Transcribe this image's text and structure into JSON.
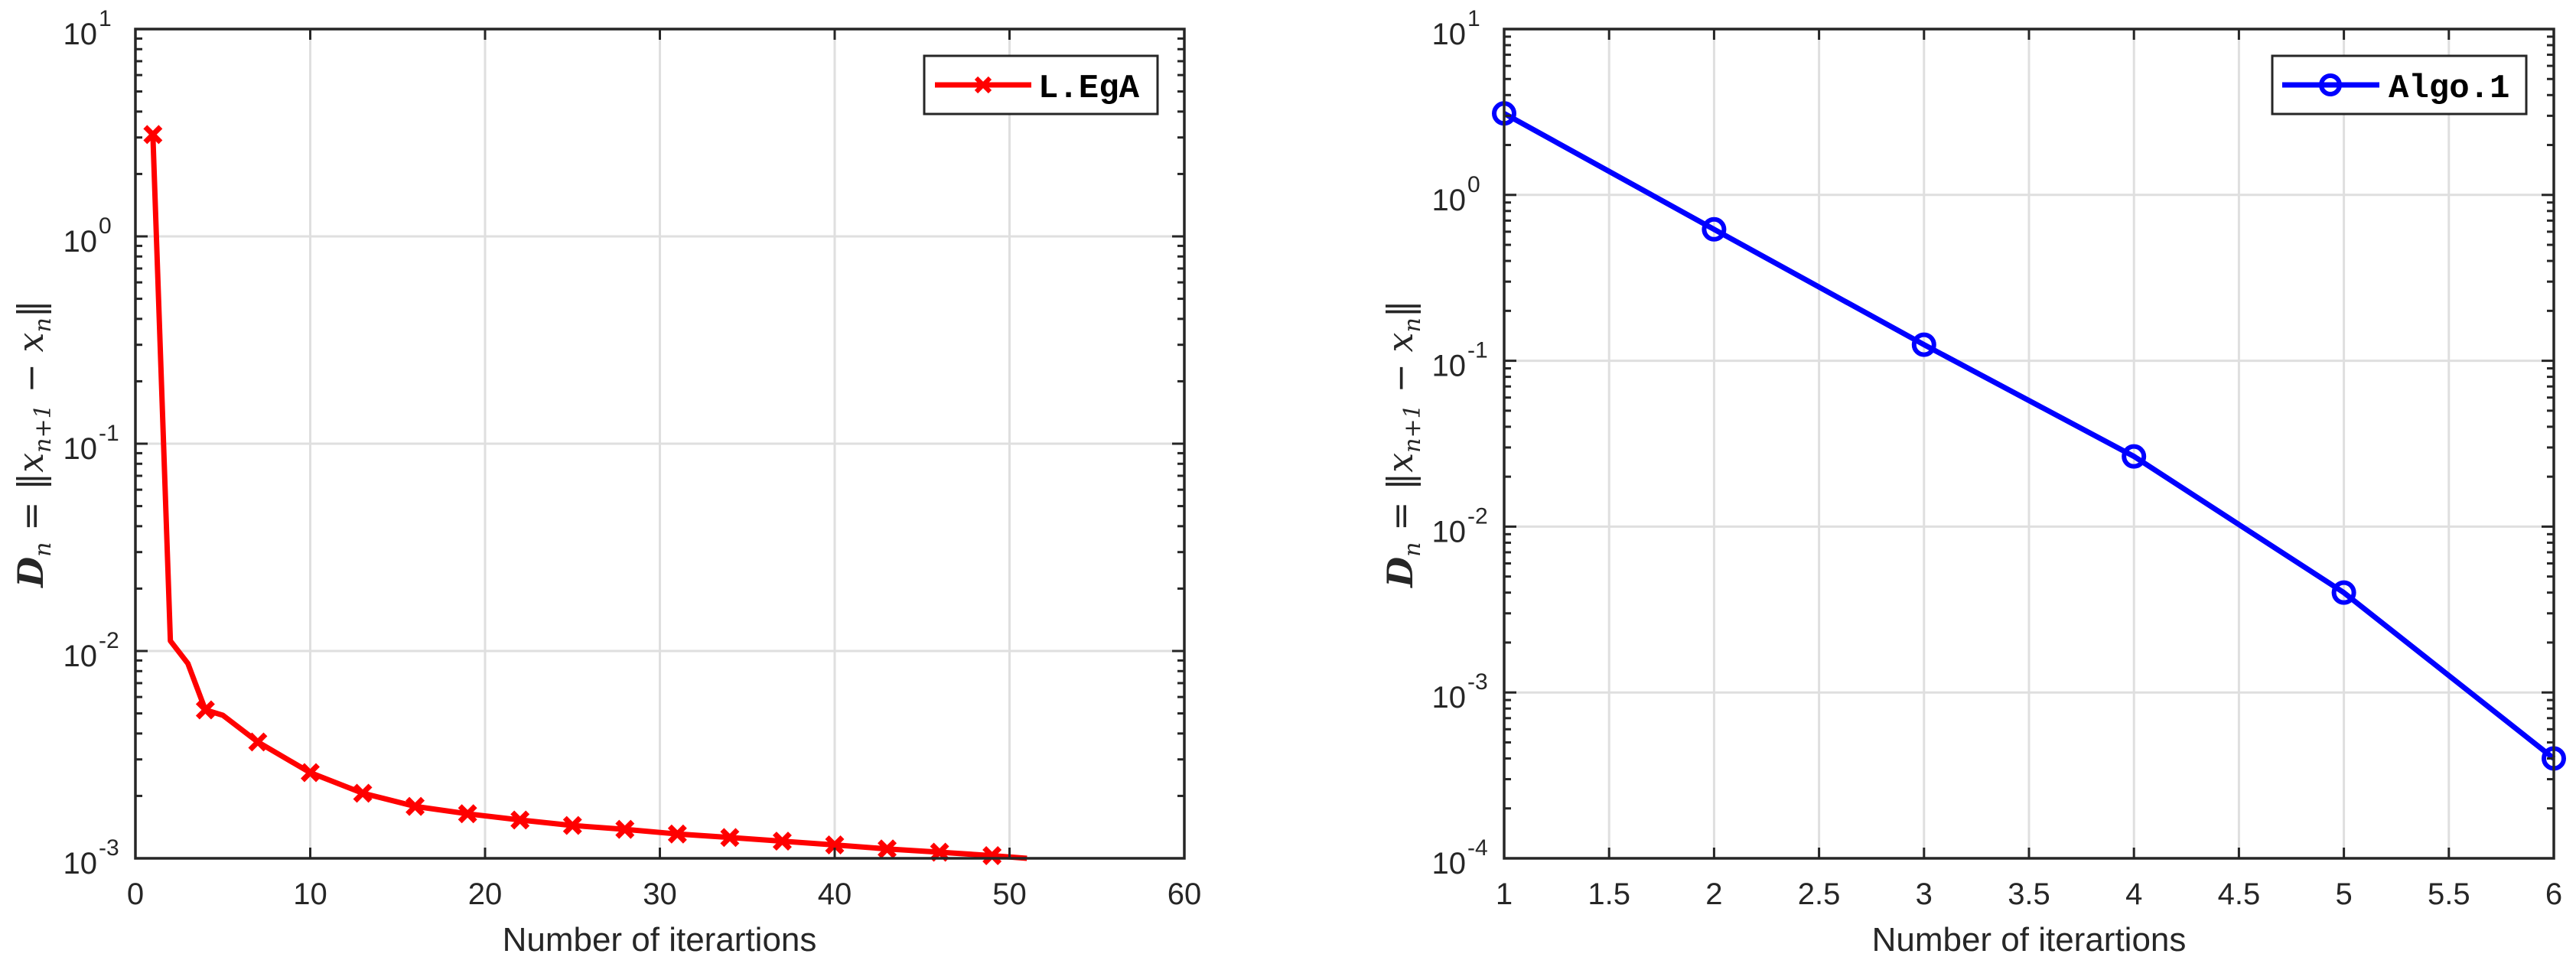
{
  "figure": {
    "panels": [
      {
        "id": "left",
        "legend_label": "L.EgA",
        "xlabel": "Number of iterartions",
        "ylabel": "D_n = ||x_{n+1} - x_n||",
        "xticks": [
          "0",
          "10",
          "20",
          "30",
          "40",
          "50",
          "60"
        ],
        "yticks": [
          "-3",
          "-2",
          "-1",
          "0",
          "1"
        ]
      },
      {
        "id": "right",
        "legend_label": "Algo.1",
        "xlabel": "Number of iterartions",
        "ylabel": "D_n = ||x_{n+1} - x_n||",
        "xticks": [
          "1",
          "1.5",
          "2",
          "2.5",
          "3",
          "3.5",
          "4",
          "4.5",
          "5",
          "5.5",
          "6"
        ],
        "yticks": [
          "-4",
          "-3",
          "-2",
          "-1",
          "0",
          "1"
        ]
      }
    ],
    "colors": {
      "left_series": "#ff0000",
      "right_series": "#0000ff",
      "axis": "#262626",
      "grid": "#dfdfdf"
    }
  },
  "chart_data": [
    {
      "type": "line",
      "title": "",
      "xlabel": "Number of iterartions",
      "ylabel": "D_n = ||x_{n+1} - x_n||",
      "xlim": [
        0,
        60
      ],
      "ylim": [
        0.001,
        10
      ],
      "yscale": "log",
      "grid": true,
      "legend_position": "top-right",
      "xticks": [
        0,
        10,
        20,
        30,
        40,
        50,
        60
      ],
      "yticks": [
        "10^-3",
        "10^-2",
        "10^-1",
        "10^0",
        "10^1"
      ],
      "series": [
        {
          "name": "L.EgA",
          "color": "#ff0000",
          "marker": "x",
          "marker_every": 3,
          "x": [
            1,
            2,
            3,
            4,
            5,
            7,
            10,
            13,
            16,
            19,
            22,
            25,
            28,
            31,
            34,
            37,
            40,
            43,
            46,
            49,
            51
          ],
          "values": [
            3.1,
            0.0112,
            0.0087,
            0.0052,
            0.0049,
            0.00364,
            0.00259,
            0.00206,
            0.00178,
            0.00164,
            0.00153,
            0.00144,
            0.00138,
            0.00131,
            0.00126,
            0.00121,
            0.00116,
            0.00111,
            0.00107,
            0.00103,
            0.001
          ],
          "marked_x": [
            1,
            4,
            7,
            10,
            13,
            16,
            19,
            22,
            25,
            28,
            31,
            34,
            37,
            40,
            43,
            46,
            49
          ]
        }
      ]
    },
    {
      "type": "line",
      "title": "",
      "xlabel": "Number of iterartions",
      "ylabel": "D_n = ||x_{n+1} - x_n||",
      "xlim": [
        1,
        6
      ],
      "ylim": [
        0.0001,
        10
      ],
      "yscale": "log",
      "grid": true,
      "legend_position": "top-right",
      "xticks": [
        1,
        1.5,
        2,
        2.5,
        3,
        3.5,
        4,
        4.5,
        5,
        5.5,
        6
      ],
      "yticks": [
        "10^-4",
        "10^-3",
        "10^-2",
        "10^-1",
        "10^0",
        "10^1"
      ],
      "series": [
        {
          "name": "Algo.1",
          "color": "#0000ff",
          "marker": "o",
          "x": [
            1,
            2,
            3,
            4,
            5,
            6
          ],
          "values": [
            3.1,
            0.62,
            0.125,
            0.0265,
            0.004,
            0.0004
          ],
          "marked_x": [
            1,
            2,
            3,
            4,
            5,
            6
          ]
        }
      ]
    }
  ]
}
